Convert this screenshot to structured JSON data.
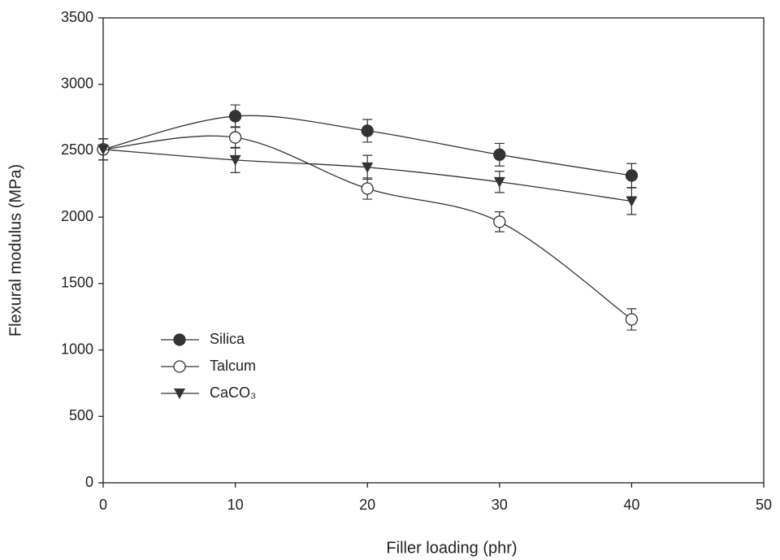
{
  "chart_data": {
    "type": "line",
    "x_label": "Filler   loading  (phr)",
    "y_label": "Flexural  modulus  (MPa)",
    "x": [
      0,
      10,
      20,
      30,
      40
    ],
    "xlim": [
      0,
      50
    ],
    "xticks": [
      0,
      10,
      20,
      30,
      40,
      50
    ],
    "ylim": [
      0,
      3500
    ],
    "yticks": [
      0,
      500,
      1000,
      1500,
      2000,
      2500,
      3000,
      3500
    ],
    "series": [
      {
        "name": "Silica",
        "color": "#333333",
        "marker": "filled-circle",
        "values": [
          2510,
          2760,
          2650,
          2470,
          2313
        ],
        "errors": [
          80,
          85,
          85,
          85,
          90
        ]
      },
      {
        "name": "Talcum",
        "color": "#333333",
        "marker": "open-circle",
        "values": [
          2510,
          2600,
          2215,
          1965,
          1230
        ],
        "errors": [
          80,
          80,
          80,
          75,
          80
        ]
      },
      {
        "name": "CaCO₃",
        "color": "#333333",
        "marker": "triangle-down",
        "values": [
          2510,
          2430,
          2375,
          2265,
          2120
        ],
        "errors": [
          80,
          95,
          90,
          80,
          100
        ]
      }
    ]
  }
}
